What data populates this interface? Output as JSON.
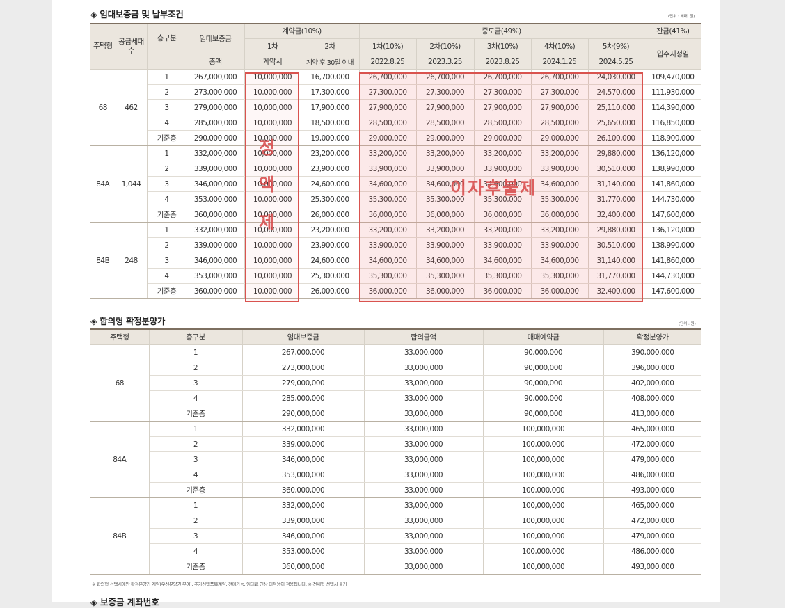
{
  "section1": {
    "title": "◈ 임대보증금 및 납부조건",
    "unit": "(단위 : 세대, 원)",
    "headers": {
      "type": "주택형",
      "supply": "공급세대수",
      "floor": "층구분",
      "deposit": "임대보증금",
      "deposit_sub": "총액",
      "contract": "계약금(10%)",
      "c1": "1차",
      "c1_sub": "계약시",
      "c2": "2차",
      "c2_sub": "계약 후 30일 이내",
      "middle": "중도금(49%)",
      "m1": "1차(10%)",
      "m1_date": "2022.8.25",
      "m2": "2차(10%)",
      "m2_date": "2023.3.25",
      "m3": "3차(10%)",
      "m3_date": "2023.8.25",
      "m4": "4차(10%)",
      "m4_date": "2024.1.25",
      "m5": "5차(9%)",
      "m5_date": "2024.5.25",
      "balance": "잔금(41%)",
      "balance_sub": "입주지정일"
    },
    "rows": [
      {
        "type": "68",
        "supply": "462",
        "floor": "1",
        "total": "267,000,000",
        "c1": "10,000,000",
        "c2": "16,700,000",
        "m1": "26,700,000",
        "m2": "26,700,000",
        "m3": "26,700,000",
        "m4": "26,700,000",
        "m5": "24,030,000",
        "bal": "109,470,000"
      },
      {
        "floor": "2",
        "total": "273,000,000",
        "c1": "10,000,000",
        "c2": "17,300,000",
        "m1": "27,300,000",
        "m2": "27,300,000",
        "m3": "27,300,000",
        "m4": "27,300,000",
        "m5": "24,570,000",
        "bal": "111,930,000"
      },
      {
        "floor": "3",
        "total": "279,000,000",
        "c1": "10,000,000",
        "c2": "17,900,000",
        "m1": "27,900,000",
        "m2": "27,900,000",
        "m3": "27,900,000",
        "m4": "27,900,000",
        "m5": "25,110,000",
        "bal": "114,390,000"
      },
      {
        "floor": "4",
        "total": "285,000,000",
        "c1": "10,000,000",
        "c2": "18,500,000",
        "m1": "28,500,000",
        "m2": "28,500,000",
        "m3": "28,500,000",
        "m4": "28,500,000",
        "m5": "25,650,000",
        "bal": "116,850,000"
      },
      {
        "floor": "기준층",
        "total": "290,000,000",
        "c1": "10,000,000",
        "c2": "19,000,000",
        "m1": "29,000,000",
        "m2": "29,000,000",
        "m3": "29,000,000",
        "m4": "29,000,000",
        "m5": "26,100,000",
        "bal": "118,900,000"
      },
      {
        "type": "84A",
        "supply": "1,044",
        "floor": "1",
        "total": "332,000,000",
        "c1": "10,000,000",
        "c2": "23,200,000",
        "m1": "33,200,000",
        "m2": "33,200,000",
        "m3": "33,200,000",
        "m4": "33,200,000",
        "m5": "29,880,000",
        "bal": "136,120,000"
      },
      {
        "floor": "2",
        "total": "339,000,000",
        "c1": "10,000,000",
        "c2": "23,900,000",
        "m1": "33,900,000",
        "m2": "33,900,000",
        "m3": "33,900,000",
        "m4": "33,900,000",
        "m5": "30,510,000",
        "bal": "138,990,000"
      },
      {
        "floor": "3",
        "total": "346,000,000",
        "c1": "10,000,000",
        "c2": "24,600,000",
        "m1": "34,600,000",
        "m2": "34,600,000",
        "m3": "34,600,000",
        "m4": "34,600,000",
        "m5": "31,140,000",
        "bal": "141,860,000"
      },
      {
        "floor": "4",
        "total": "353,000,000",
        "c1": "10,000,000",
        "c2": "25,300,000",
        "m1": "35,300,000",
        "m2": "35,300,000",
        "m3": "35,300,000",
        "m4": "35,300,000",
        "m5": "31,770,000",
        "bal": "144,730,000"
      },
      {
        "floor": "기준층",
        "total": "360,000,000",
        "c1": "10,000,000",
        "c2": "26,000,000",
        "m1": "36,000,000",
        "m2": "36,000,000",
        "m3": "36,000,000",
        "m4": "36,000,000",
        "m5": "32,400,000",
        "bal": "147,600,000"
      },
      {
        "type": "84B",
        "supply": "248",
        "floor": "1",
        "total": "332,000,000",
        "c1": "10,000,000",
        "c2": "23,200,000",
        "m1": "33,200,000",
        "m2": "33,200,000",
        "m3": "33,200,000",
        "m4": "33,200,000",
        "m5": "29,880,000",
        "bal": "136,120,000"
      },
      {
        "floor": "2",
        "total": "339,000,000",
        "c1": "10,000,000",
        "c2": "23,900,000",
        "m1": "33,900,000",
        "m2": "33,900,000",
        "m3": "33,900,000",
        "m4": "33,900,000",
        "m5": "30,510,000",
        "bal": "138,990,000"
      },
      {
        "floor": "3",
        "total": "346,000,000",
        "c1": "10,000,000",
        "c2": "24,600,000",
        "m1": "34,600,000",
        "m2": "34,600,000",
        "m3": "34,600,000",
        "m4": "34,600,000",
        "m5": "31,140,000",
        "bal": "141,860,000"
      },
      {
        "floor": "4",
        "total": "353,000,000",
        "c1": "10,000,000",
        "c2": "25,300,000",
        "m1": "35,300,000",
        "m2": "35,300,000",
        "m3": "35,300,000",
        "m4": "35,300,000",
        "m5": "31,770,000",
        "bal": "144,730,000"
      },
      {
        "floor": "기준층",
        "total": "360,000,000",
        "c1": "10,000,000",
        "c2": "26,000,000",
        "m1": "36,000,000",
        "m2": "36,000,000",
        "m3": "36,000,000",
        "m4": "36,000,000",
        "m5": "32,400,000",
        "bal": "147,600,000"
      }
    ],
    "stamp_fixed": [
      "정",
      "액",
      "제"
    ],
    "stamp_interest": "이자후불제"
  },
  "section2": {
    "title": "◈ 합의형 확정분양가",
    "unit": "(단위 : 원)",
    "headers": [
      "주택형",
      "층구분",
      "임대보증금",
      "합의금액",
      "매매예약금",
      "확정분양가"
    ],
    "groups": [
      {
        "type": "68",
        "rows": [
          [
            "1",
            "267,000,000",
            "33,000,000",
            "90,000,000",
            "390,000,000"
          ],
          [
            "2",
            "273,000,000",
            "33,000,000",
            "90,000,000",
            "396,000,000"
          ],
          [
            "3",
            "279,000,000",
            "33,000,000",
            "90,000,000",
            "402,000,000"
          ],
          [
            "4",
            "285,000,000",
            "33,000,000",
            "90,000,000",
            "408,000,000"
          ],
          [
            "기준층",
            "290,000,000",
            "33,000,000",
            "90,000,000",
            "413,000,000"
          ]
        ]
      },
      {
        "type": "84A",
        "rows": [
          [
            "1",
            "332,000,000",
            "33,000,000",
            "100,000,000",
            "465,000,000"
          ],
          [
            "2",
            "339,000,000",
            "33,000,000",
            "100,000,000",
            "472,000,000"
          ],
          [
            "3",
            "346,000,000",
            "33,000,000",
            "100,000,000",
            "479,000,000"
          ],
          [
            "4",
            "353,000,000",
            "33,000,000",
            "100,000,000",
            "486,000,000"
          ],
          [
            "기준층",
            "360,000,000",
            "33,000,000",
            "100,000,000",
            "493,000,000"
          ]
        ]
      },
      {
        "type": "84B",
        "rows": [
          [
            "1",
            "332,000,000",
            "33,000,000",
            "100,000,000",
            "465,000,000"
          ],
          [
            "2",
            "339,000,000",
            "33,000,000",
            "100,000,000",
            "472,000,000"
          ],
          [
            "3",
            "346,000,000",
            "33,000,000",
            "100,000,000",
            "479,000,000"
          ],
          [
            "4",
            "353,000,000",
            "33,000,000",
            "100,000,000",
            "486,000,000"
          ],
          [
            "기준층",
            "360,000,000",
            "33,000,000",
            "100,000,000",
            "493,000,000"
          ]
        ]
      }
    ],
    "note": "※ 합의형 선택시에만 확정분양가 계약(우선분양권 부여), 추가선택품목계약, 전매가능, 임대료 인상 미적용이 적용됩니다.  ※ 전세형 선택시 불가"
  },
  "section3": {
    "title": "◈ 보증금 계좌번호"
  }
}
